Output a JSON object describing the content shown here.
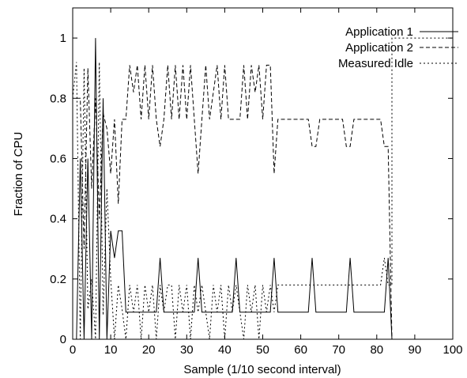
{
  "chart_data": {
    "type": "line",
    "xlabel": "Sample (1/10 second interval)",
    "ylabel": "Fraction of CPU",
    "xlim": [
      0,
      100
    ],
    "ylim": [
      0,
      1.1
    ],
    "xticks": [
      0,
      10,
      20,
      30,
      40,
      50,
      60,
      70,
      80,
      90,
      100
    ],
    "yticks": [
      0,
      0.2,
      0.4,
      0.6,
      0.8,
      1
    ],
    "grid": false,
    "legend_position": "top-right",
    "series": [
      {
        "name": "Application 1",
        "style": "solid",
        "x": [
          1,
          2,
          3,
          4,
          5,
          6,
          7,
          8,
          9,
          10,
          11,
          12,
          13,
          14,
          15,
          16,
          17,
          18,
          19,
          20,
          21,
          22,
          23,
          24,
          25,
          26,
          27,
          28,
          29,
          30,
          31,
          32,
          33,
          34,
          35,
          36,
          37,
          38,
          39,
          40,
          41,
          42,
          43,
          44,
          45,
          46,
          47,
          48,
          49,
          50,
          51,
          52,
          53,
          54,
          55,
          56,
          57,
          58,
          59,
          60,
          61,
          62,
          63,
          64,
          65,
          66,
          67,
          68,
          69,
          70,
          71,
          72,
          73,
          74,
          75,
          76,
          77,
          78,
          79,
          80,
          81,
          82,
          83,
          84
        ],
        "y": [
          0,
          0.6,
          0,
          0.6,
          0,
          1,
          0,
          0.8,
          0,
          0.36,
          0.27,
          0.36,
          0.36,
          0.09,
          0.09,
          0.09,
          0.09,
          0.09,
          0.09,
          0.09,
          0.09,
          0.09,
          0.27,
          0.09,
          0.09,
          0.09,
          0.09,
          0.09,
          0.09,
          0.09,
          0.09,
          0.09,
          0.27,
          0.09,
          0.09,
          0.09,
          0.09,
          0.09,
          0.09,
          0.09,
          0.09,
          0.09,
          0.27,
          0.09,
          0.09,
          0.09,
          0.09,
          0.09,
          0.09,
          0.09,
          0.09,
          0.09,
          0.27,
          0.09,
          0.09,
          0.09,
          0.09,
          0.09,
          0.09,
          0.09,
          0.09,
          0.09,
          0.27,
          0.09,
          0.09,
          0.09,
          0.09,
          0.09,
          0.09,
          0.09,
          0.09,
          0.09,
          0.27,
          0.09,
          0.09,
          0.09,
          0.09,
          0.09,
          0.09,
          0.09,
          0.09,
          0.09,
          0.27,
          0
        ]
      },
      {
        "name": "Application 2",
        "style": "dashed",
        "x": [
          1,
          2,
          3,
          4,
          5,
          6,
          7,
          8,
          9,
          10,
          11,
          12,
          13,
          14,
          15,
          16,
          17,
          18,
          19,
          20,
          21,
          22,
          23,
          24,
          25,
          26,
          27,
          28,
          29,
          30,
          31,
          32,
          33,
          34,
          35,
          36,
          37,
          38,
          39,
          40,
          41,
          42,
          43,
          44,
          45,
          46,
          47,
          48,
          49,
          50,
          51,
          52,
          53,
          54,
          55,
          56,
          57,
          58,
          59,
          60,
          61,
          62,
          63,
          64,
          65,
          66,
          67,
          68,
          69,
          70,
          71,
          72,
          73,
          74,
          75,
          76,
          77,
          78,
          79,
          80,
          81,
          82,
          83,
          84
        ],
        "y": [
          0.8,
          0.8,
          0.3,
          0.9,
          0.5,
          0.8,
          0.4,
          0.75,
          0.7,
          0.55,
          0.73,
          0.45,
          0.73,
          0.73,
          0.91,
          0.82,
          0.91,
          0.73,
          0.91,
          0.73,
          0.91,
          0.73,
          0.64,
          0.73,
          0.91,
          0.73,
          0.91,
          0.73,
          0.91,
          0.73,
          0.91,
          0.73,
          0.55,
          0.73,
          0.91,
          0.73,
          0.82,
          0.91,
          0.73,
          0.91,
          0.73,
          0.73,
          0.73,
          0.73,
          0.91,
          0.73,
          0.91,
          0.82,
          0.91,
          0.73,
          0.91,
          0.91,
          0.55,
          0.73,
          0.73,
          0.73,
          0.73,
          0.73,
          0.73,
          0.73,
          0.73,
          0.73,
          0.64,
          0.64,
          0.73,
          0.73,
          0.73,
          0.73,
          0.73,
          0.73,
          0.73,
          0.64,
          0.64,
          0.73,
          0.73,
          0.73,
          0.73,
          0.73,
          0.73,
          0.73,
          0.73,
          0.64,
          0.64,
          0
        ]
      },
      {
        "name": "Measured Idle",
        "style": "dotted",
        "x": [
          0,
          1,
          2,
          3,
          4,
          5,
          6,
          7,
          8,
          9,
          10,
          11,
          12,
          13,
          14,
          15,
          16,
          17,
          18,
          19,
          20,
          21,
          22,
          23,
          24,
          25,
          26,
          27,
          28,
          29,
          30,
          31,
          32,
          33,
          34,
          35,
          36,
          37,
          38,
          39,
          40,
          41,
          42,
          43,
          44,
          45,
          46,
          47,
          48,
          49,
          50,
          51,
          52,
          53,
          54,
          55,
          56,
          57,
          58,
          59,
          60,
          61,
          62,
          63,
          64,
          65,
          66,
          67,
          68,
          69,
          70,
          71,
          72,
          73,
          74,
          75,
          76,
          77,
          78,
          79,
          80,
          81,
          82,
          83,
          84,
          84,
          100
        ],
        "y": [
          0.8,
          0.92,
          0,
          0.9,
          0.1,
          0.2,
          0,
          0.92,
          0.08,
          0.5,
          0.2,
          0,
          0.18,
          0.1,
          0,
          0.18,
          0.09,
          0.18,
          0,
          0.18,
          0.09,
          0.18,
          0,
          0.18,
          0.09,
          0.18,
          0.18,
          0,
          0.18,
          0.09,
          0.18,
          0,
          0.18,
          0.09,
          0.18,
          0.09,
          0,
          0.18,
          0.09,
          0.18,
          0,
          0.18,
          0.09,
          0.18,
          0.09,
          0,
          0.18,
          0.09,
          0.18,
          0,
          0.18,
          0.09,
          0.18,
          0.09,
          0.18,
          0.18,
          0.18,
          0.18,
          0.18,
          0.18,
          0.18,
          0.18,
          0.18,
          0.18,
          0.18,
          0.18,
          0.18,
          0.18,
          0.18,
          0.18,
          0.18,
          0.18,
          0.18,
          0.18,
          0.18,
          0.18,
          0.18,
          0.18,
          0.18,
          0.18,
          0.18,
          0.18,
          0.27,
          0.18,
          0.18,
          1.0,
          1.0
        ]
      }
    ]
  }
}
